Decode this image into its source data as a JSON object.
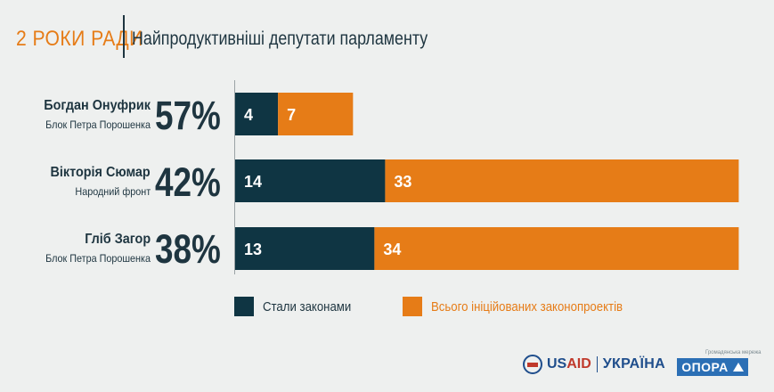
{
  "header": {
    "brand": "2 РОКИ РАДИ",
    "title": "Найпродуктивніші депутати парламенту"
  },
  "colors": {
    "laws": "#0f3543",
    "initiated": "#e67c17",
    "background": "#eef0ef",
    "text": "#1e3540"
  },
  "chart_data": {
    "type": "bar",
    "orientation": "horizontal",
    "stacked": true,
    "categories": [
      "Богдан Онуфрик",
      "Вікторія Сюмар",
      "Гліб Загор"
    ],
    "parties": [
      "Блок Петра Порошенка",
      "Народний фронт",
      "Блок Петра Порошенка"
    ],
    "percentages": [
      "57%",
      "42%",
      "38%"
    ],
    "series": [
      {
        "name": "Стали законами",
        "values": [
          4,
          14,
          13
        ],
        "color": "#0f3543"
      },
      {
        "name": "Всього ініційованих законопроектів",
        "values": [
          7,
          33,
          34
        ],
        "color": "#e67c17"
      }
    ],
    "legend_position": "bottom",
    "grid": false
  },
  "footer": {
    "usaid_a": "US",
    "usaid_b": "AID",
    "ukraine": "УКРАЇНА",
    "opora": "ОПОРА",
    "opora_caption": "Громадянська мережа"
  }
}
